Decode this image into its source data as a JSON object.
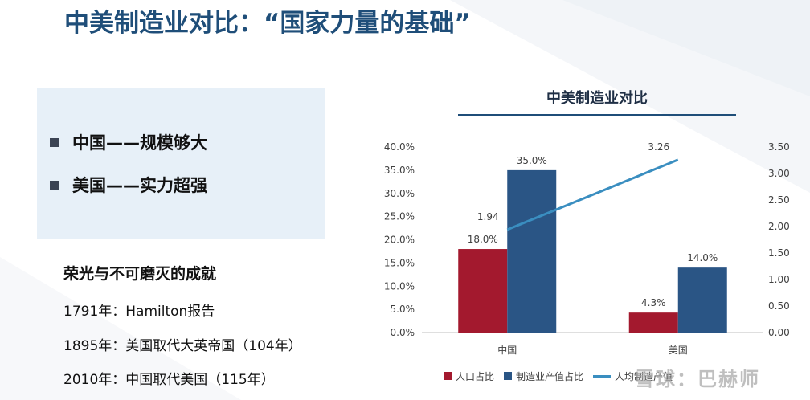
{
  "slide": {
    "title": "中美制造业对比：“国家力量的基础”",
    "colors": {
      "title": "#1f4e79",
      "accent_dark": "#1f3a5c",
      "box_bg": "#e7f0f8"
    }
  },
  "highlights": [
    {
      "text": "中国——规模够大"
    },
    {
      "text": "美国——实力超强"
    }
  ],
  "achievements": {
    "heading": "荣光与不可磨灭的成就",
    "items": [
      {
        "text": "1791年：Hamilton报告"
      },
      {
        "text": "1895年：美国取代大英帝国（104年）"
      },
      {
        "text": "2010年：中国取代美国（115年）"
      }
    ]
  },
  "chart_data": {
    "type": "bar",
    "title": "中美制造业对比",
    "categories": [
      "中国",
      "美国"
    ],
    "series": [
      {
        "name": "人口占比",
        "type": "bar",
        "axis": "left",
        "values": [
          18.0,
          4.3
        ],
        "labels": [
          "18.0%",
          "4.3%"
        ],
        "color": "#a3192e"
      },
      {
        "name": "制造业产值占比",
        "type": "bar",
        "axis": "left",
        "values": [
          35.0,
          14.0
        ],
        "labels": [
          "35.0%",
          "14.0%"
        ],
        "color": "#2a5585"
      },
      {
        "name": "人均制造产值",
        "type": "line",
        "axis": "right",
        "values": [
          1.94,
          3.26
        ],
        "labels": [
          "1.94",
          "3.26"
        ],
        "color": "#3a8ec0"
      }
    ],
    "y_left": {
      "min": 0,
      "max": 40,
      "step": 5,
      "ticks": [
        "0.0%",
        "5.0%",
        "10.0%",
        "15.0%",
        "20.0%",
        "25.0%",
        "30.0%",
        "35.0%",
        "40.0%"
      ]
    },
    "y_right": {
      "min": 0,
      "max": 3.5,
      "step": 0.5,
      "ticks": [
        "0.00",
        "0.50",
        "1.00",
        "1.50",
        "2.00",
        "2.50",
        "3.00",
        "3.50"
      ]
    },
    "grid": false,
    "legend_position": "bottom"
  },
  "watermark": {
    "text": "雪球：巴赫师"
  }
}
